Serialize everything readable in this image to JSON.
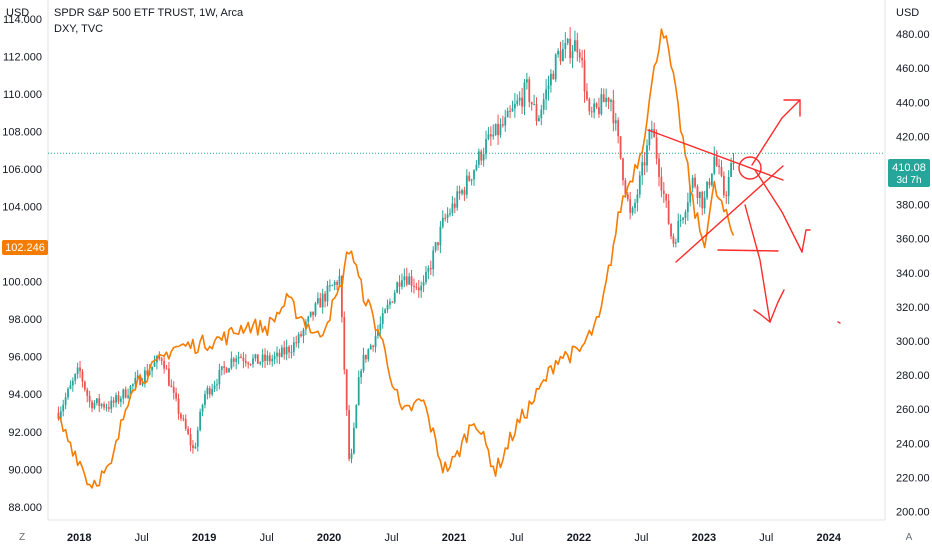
{
  "header": {
    "title": "SPDR S&P 500 ETF TRUST, 1W, Arca",
    "overlay": "DXY, TVC"
  },
  "axis_unit_left": "USD",
  "axis_unit_right": "USD",
  "bottom_controls": {
    "left": "Z",
    "right": "A"
  },
  "colors": {
    "candle_up": "#26a69a",
    "candle_down": "#ef5350",
    "dxy_line": "#f57c00",
    "drawing": "#ff2a2a",
    "price_line": "#26a69a"
  },
  "chart_data": {
    "type": "line",
    "title": "SPDR S&P 500 ETF TRUST, 1W, Arca",
    "x_ticks": [
      "2018",
      "Jul",
      "2019",
      "Jul",
      "2020",
      "Jul",
      "2021",
      "Jul",
      "2022",
      "Jul",
      "2023",
      "Jul",
      "2024"
    ],
    "y_left_ticks": [
      "114.000",
      "112.000",
      "110.000",
      "108.000",
      "106.000",
      "104.000",
      "102.000",
      "100.000",
      "98.000",
      "96.000",
      "94.000",
      "92.000",
      "90.000",
      "88.000"
    ],
    "y_right_ticks": [
      "480.00",
      "460.00",
      "440.00",
      "420.00",
      "400.00",
      "380.00",
      "360.00",
      "340.00",
      "320.00",
      "300.00",
      "280.00",
      "260.00",
      "240.00",
      "220.00",
      "200.00"
    ],
    "ylim_left": [
      87.3,
      115
    ],
    "ylim_right": [
      195,
      500
    ],
    "grid": false,
    "series": [
      {
        "name": "SPDR S&P 500 ETF TRUST",
        "kind": "candlestick",
        "axis": "right",
        "last_value": "410.08",
        "countdown": "3d 7h",
        "points": [
          [
            "2017-11",
            258
          ],
          [
            "2018-01",
            283
          ],
          [
            "2018-02",
            264
          ],
          [
            "2018-04",
            262
          ],
          [
            "2018-06",
            273
          ],
          [
            "2018-08",
            285
          ],
          [
            "2018-09",
            291
          ],
          [
            "2018-10",
            268
          ],
          [
            "2018-12",
            235
          ],
          [
            "2019-01",
            268
          ],
          [
            "2019-04",
            292
          ],
          [
            "2019-06",
            288
          ],
          [
            "2019-08",
            290
          ],
          [
            "2019-10",
            300
          ],
          [
            "2019-12",
            322
          ],
          [
            "2020-02",
            337
          ],
          [
            "2020-03",
            222
          ],
          [
            "2020-04",
            285
          ],
          [
            "2020-06",
            310
          ],
          [
            "2020-08",
            340
          ],
          [
            "2020-10",
            330
          ],
          [
            "2020-12",
            370
          ],
          [
            "2021-02",
            390
          ],
          [
            "2021-04",
            415
          ],
          [
            "2021-06",
            428
          ],
          [
            "2021-08",
            448
          ],
          [
            "2021-09",
            430
          ],
          [
            "2021-11",
            468
          ],
          [
            "2022-01",
            475
          ],
          [
            "2022-02",
            430
          ],
          [
            "2022-04",
            445
          ],
          [
            "2022-06",
            370
          ],
          [
            "2022-08",
            425
          ],
          [
            "2022-10",
            357
          ],
          [
            "2022-12",
            395
          ],
          [
            "2023-01",
            380
          ],
          [
            "2023-02",
            408
          ],
          [
            "2023-03",
            385
          ],
          [
            "2023-04",
            410
          ]
        ]
      },
      {
        "name": "DXY",
        "kind": "line",
        "axis": "left",
        "last_value": "102.246",
        "points": [
          [
            "2017-11",
            92.6
          ],
          [
            "2018-01",
            90.5
          ],
          [
            "2018-02",
            89.2
          ],
          [
            "2018-04",
            90.0
          ],
          [
            "2018-06",
            94.5
          ],
          [
            "2018-08",
            95.3
          ],
          [
            "2018-10",
            96.5
          ],
          [
            "2018-12",
            96.6
          ],
          [
            "2019-03",
            97.0
          ],
          [
            "2019-05",
            97.7
          ],
          [
            "2019-07",
            97.5
          ],
          [
            "2019-09",
            99.0
          ],
          [
            "2019-12",
            97.0
          ],
          [
            "2020-02",
            99.5
          ],
          [
            "2020-03",
            102.0
          ],
          [
            "2020-04",
            99.8
          ],
          [
            "2020-06",
            97.0
          ],
          [
            "2020-08",
            92.9
          ],
          [
            "2020-10",
            93.7
          ],
          [
            "2020-12",
            90.0
          ],
          [
            "2021-01",
            90.4
          ],
          [
            "2021-03",
            92.8
          ],
          [
            "2021-05",
            89.9
          ],
          [
            "2021-07",
            92.3
          ],
          [
            "2021-09",
            94.0
          ],
          [
            "2021-11",
            96.0
          ],
          [
            "2022-01",
            96.2
          ],
          [
            "2022-03",
            98.0
          ],
          [
            "2022-05",
            104.0
          ],
          [
            "2022-07",
            107.0
          ],
          [
            "2022-09",
            113.8
          ],
          [
            "2022-10",
            111.0
          ],
          [
            "2022-12",
            104.0
          ],
          [
            "2023-01",
            102.0
          ],
          [
            "2023-02",
            105.0
          ],
          [
            "2023-04",
            102.246
          ]
        ]
      }
    ]
  }
}
